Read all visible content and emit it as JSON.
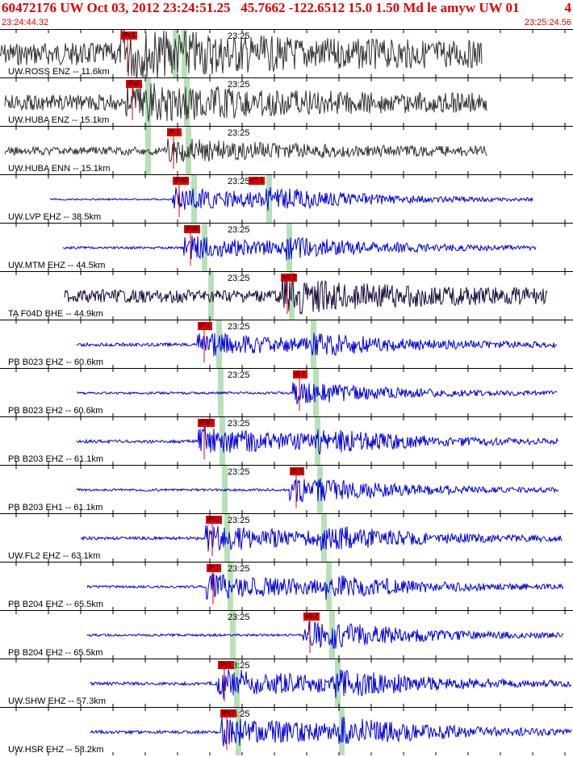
{
  "header": {
    "title": "60472176 UW Oct 03, 2012 23:24:51.25   45.7662 -122.6512 15.0 1.50 Md le amyw UW 01",
    "page_number": "4",
    "start_time": "23:24:44.32",
    "end_time": "23:25:24.56"
  },
  "colors": {
    "header_text": "#e00000",
    "trace_short_period": "#333333",
    "trace_broadband": "#1a0a3a",
    "trace_strong": "#0000e0",
    "pick_box": "#e00000",
    "pick_window": "#b8e0b8"
  },
  "minute_label": "23:25",
  "traces": [
    {
      "label": "UW.ROSS ENZ -- 11.6km",
      "pick": "iPc1",
      "color": "trace_short_period"
    },
    {
      "label": "UW.HUBA ENZ -- 15.1km",
      "pick": "iPc0",
      "color": "trace_short_period"
    },
    {
      "label": "UW.HUBA ENN -- 15.1km",
      "pick": "iS 1",
      "color": "trace_short_period"
    },
    {
      "label": "UW.LVP EHZ -- 38.5km",
      "pick": "iPd0",
      "pick2": "eS 1",
      "color": "trace_strong"
    },
    {
      "label": "UW.MTM EHZ -- 44.5km",
      "pick": "iPd0",
      "color": "trace_strong"
    },
    {
      "label": "TA F04D BHE -- 44.9km",
      "pick": "eS 2",
      "color": "trace_broadband"
    },
    {
      "label": "PB B023 EHZ -- 60.6km",
      "pick": "iP 1",
      "color": "trace_strong"
    },
    {
      "label": "PB B023 EH2 -- 60.6km",
      "pick": "iS 1",
      "color": "trace_strong"
    },
    {
      "label": "PB B203 EHZ -- 61.1km",
      "pick": "iP3C",
      "color": "trace_strong"
    },
    {
      "label": "PB B203 EH1 -- 61.1km",
      "pick": "iS 1",
      "color": "trace_strong"
    },
    {
      "label": "UW.FL2 EHZ -- 63.1km",
      "pick": "iPc1",
      "color": "trace_strong"
    },
    {
      "label": "PB B204 EHZ -- 65.5km",
      "pick": "iP 1",
      "color": "trace_strong"
    },
    {
      "label": "PB B204 EH2 -- 65.5km",
      "pick": "eS 2",
      "color": "trace_strong"
    },
    {
      "label": "UW.SHW EHZ -- 57.3km",
      "pick": "iPc1",
      "color": "trace_strong"
    },
    {
      "label": "UW.HSR EHZ -- 58.2km",
      "pick": "iPc2",
      "color": "trace_strong"
    }
  ]
}
